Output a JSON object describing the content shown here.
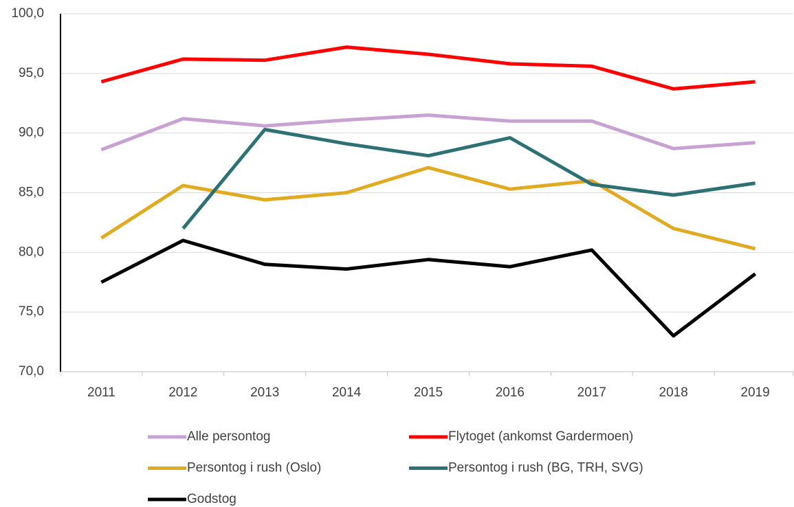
{
  "chart_data": {
    "type": "line",
    "categories": [
      "2011",
      "2012",
      "2013",
      "2014",
      "2015",
      "2016",
      "2017",
      "2018",
      "2019"
    ],
    "series": [
      {
        "name": "Alle persontog",
        "color": "#c8a2d2",
        "values": [
          88.6,
          91.2,
          90.6,
          91.1,
          91.5,
          91.0,
          91.0,
          88.7,
          89.2
        ]
      },
      {
        "name": "Flytoget (ankomst Gardermoen)",
        "color": "#ff0000",
        "values": [
          94.3,
          96.2,
          96.1,
          97.2,
          96.6,
          95.8,
          95.6,
          93.7,
          94.3
        ]
      },
      {
        "name": "Persontog i rush (Oslo)",
        "color": "#e0ab22",
        "values": [
          81.2,
          85.6,
          84.4,
          85.0,
          87.1,
          85.3,
          86.0,
          82.0,
          80.3
        ]
      },
      {
        "name": "Persontog i rush (BG, TRH, SVG)",
        "color": "#2e7175",
        "values": [
          null,
          82.0,
          90.3,
          89.1,
          88.1,
          89.6,
          85.7,
          84.8,
          85.8
        ]
      },
      {
        "name": "Godstog",
        "color": "#000000",
        "values": [
          77.5,
          81.0,
          79.0,
          78.6,
          79.4,
          78.8,
          80.2,
          73.0,
          78.2
        ]
      }
    ],
    "ylim": [
      70,
      100
    ],
    "yticks": [
      {
        "value": 70,
        "label": "70,0"
      },
      {
        "value": 75,
        "label": "75,0"
      },
      {
        "value": 80,
        "label": "80,0"
      },
      {
        "value": 85,
        "label": "85,0"
      },
      {
        "value": 90,
        "label": "90,0"
      },
      {
        "value": 95,
        "label": "95,0"
      },
      {
        "value": 100,
        "label": "100,0"
      }
    ],
    "grid": true,
    "legend": "bottom"
  }
}
